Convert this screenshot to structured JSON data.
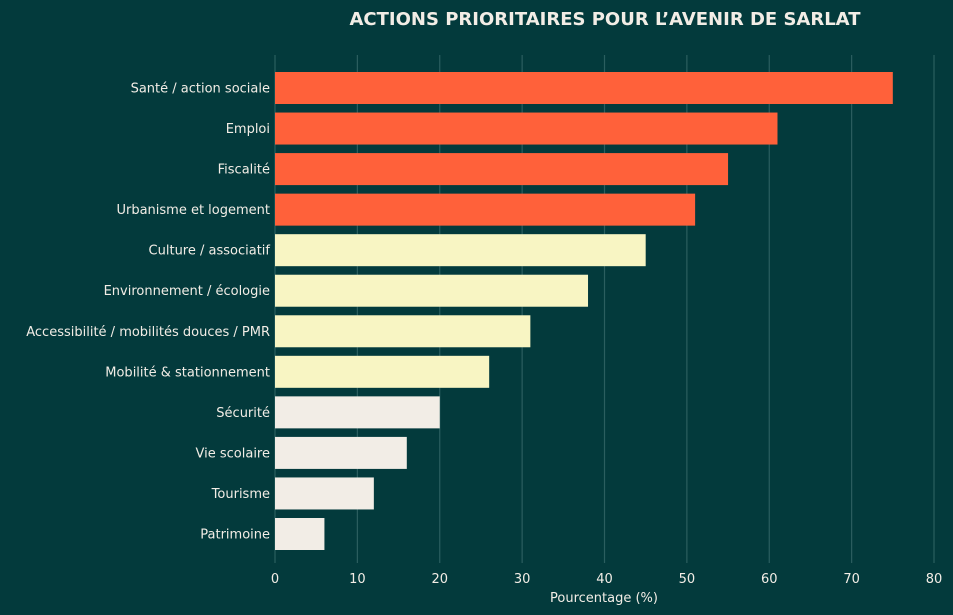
{
  "chart_data": {
    "type": "bar",
    "orientation": "horizontal",
    "title": "ACTIONS PRIORITAIRES POUR L’AVENIR DE SARLAT",
    "xlabel": "Pourcentage (%)",
    "ylabel": "",
    "xlim": [
      0,
      80
    ],
    "xticks": [
      0,
      10,
      20,
      30,
      40,
      50,
      60,
      70,
      80
    ],
    "grid": "vertical",
    "categories": [
      "Santé / action sociale",
      "Emploi",
      "Fiscalité",
      "Urbanisme et logement",
      "Culture / associatif",
      "Environnement / écologie",
      "Accessibilité / mobilités douces / PMR",
      "Mobilité & stationnement",
      "Sécurité",
      "Vie scolaire",
      "Tourisme",
      "Patrimoine"
    ],
    "values": [
      75,
      61,
      55,
      51,
      45,
      38,
      31,
      26,
      20,
      16,
      12,
      6
    ],
    "bar_colors": [
      "#ff613a",
      "#ff613a",
      "#ff613a",
      "#ff613a",
      "#f8f5c3",
      "#f8f5c3",
      "#f8f5c3",
      "#f8f5c3",
      "#f2ede6",
      "#f2ede6",
      "#f2ede6",
      "#f2ede6"
    ]
  },
  "colors": {
    "background": "#033a3c",
    "text": "#f2ede6",
    "grid": "#2b5e5f"
  }
}
